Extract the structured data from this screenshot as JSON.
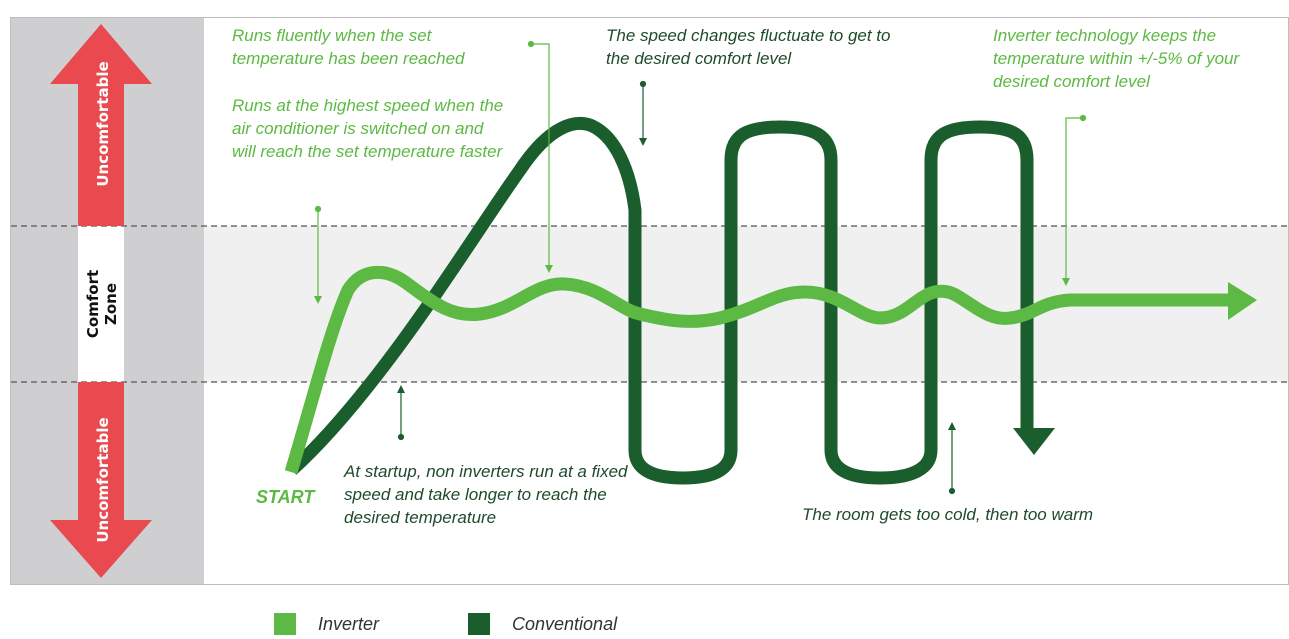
{
  "zones": {
    "top": "Uncomfortable",
    "middle_line1": "Comfort",
    "middle_line2": "Zone",
    "bottom": "Uncomfortable"
  },
  "start_label": "START",
  "annotations": {
    "fluent": "Runs fluently when the set temperature has been reached",
    "highest_speed": "Runs at the highest speed when the air conditioner is switched on and will reach the set temperature faster",
    "speed_changes": "The speed changes fluctuate to get to the desired comfort level",
    "inverter_tech": "Inverter technology keeps the temperature within +/-5% of your desired comfort level",
    "startup": "At startup, non inverters run at a fixed speed and take longer to reach the desired temperature",
    "too_cold": "The room gets too cold, then too warm"
  },
  "legend": {
    "inverter": "Inverter",
    "conventional": "Conventional"
  },
  "colors": {
    "inverter": "#5cb943",
    "conventional": "#1b5e2d",
    "uncomfortable_arrow": "#e84a4f",
    "left_panel": "#cfcfd1",
    "comfort_band": "#f0f0f0"
  }
}
